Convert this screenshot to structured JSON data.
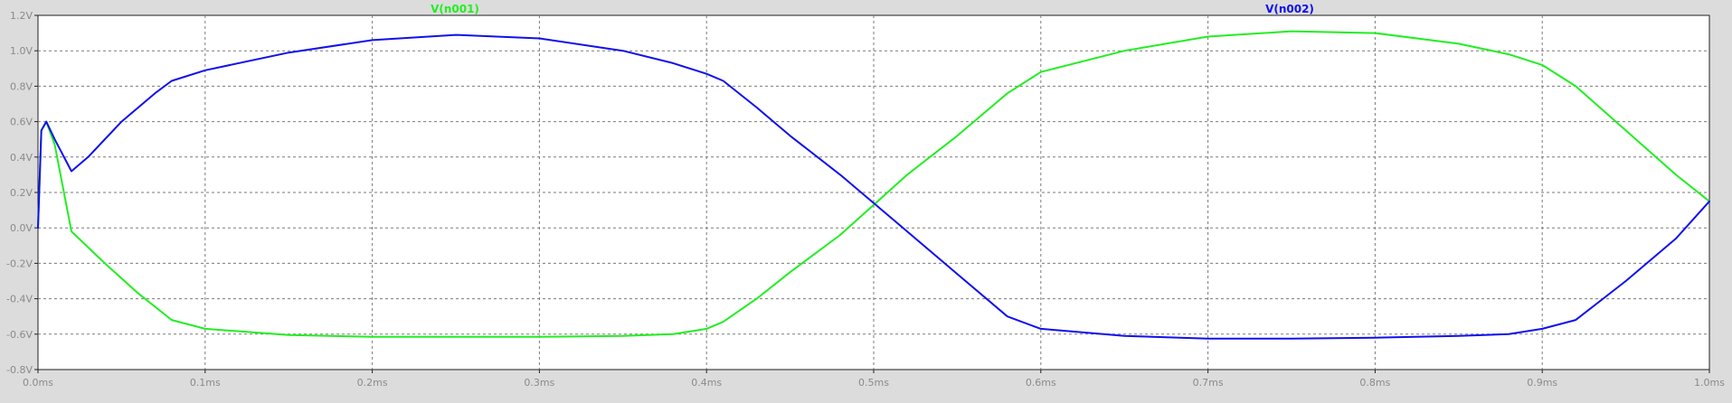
{
  "chart_data": {
    "type": "line",
    "x_unit": "ms",
    "y_unit": "V",
    "xlim": [
      0.0,
      1.0
    ],
    "ylim": [
      -0.8,
      1.2
    ],
    "grid": true,
    "x_tick_labels": [
      "0.0ms",
      "0.1ms",
      "0.2ms",
      "0.3ms",
      "0.4ms",
      "0.5ms",
      "0.6ms",
      "0.7ms",
      "0.8ms",
      "0.9ms",
      "1.0ms"
    ],
    "x_tick_values": [
      0.0,
      0.1,
      0.2,
      0.3,
      0.4,
      0.5,
      0.6,
      0.7,
      0.8,
      0.9,
      1.0
    ],
    "y_tick_labels": [
      "1.2V",
      "1.0V",
      "0.8V",
      "0.6V",
      "0.4V",
      "0.2V",
      "0.0V",
      "-0.2V",
      "-0.4V",
      "-0.6V",
      "-0.8V"
    ],
    "y_tick_values": [
      1.2,
      1.0,
      0.8,
      0.6,
      0.4,
      0.2,
      0.0,
      -0.2,
      -0.4,
      -0.6,
      -0.8
    ],
    "series": [
      {
        "name": "V(n001)",
        "color": "#22ee22",
        "x": [
          0.0,
          0.002,
          0.005,
          0.01,
          0.02,
          0.04,
          0.06,
          0.08,
          0.1,
          0.15,
          0.2,
          0.25,
          0.3,
          0.35,
          0.38,
          0.4,
          0.41,
          0.43,
          0.45,
          0.48,
          0.5,
          0.52,
          0.55,
          0.58,
          0.6,
          0.65,
          0.7,
          0.75,
          0.8,
          0.85,
          0.88,
          0.9,
          0.92,
          0.95,
          0.98,
          1.0
        ],
        "y": [
          0.0,
          0.55,
          0.6,
          0.47,
          -0.02,
          -0.2,
          -0.37,
          -0.52,
          -0.57,
          -0.605,
          -0.615,
          -0.615,
          -0.615,
          -0.61,
          -0.6,
          -0.57,
          -0.53,
          -0.4,
          -0.25,
          -0.04,
          0.13,
          0.3,
          0.52,
          0.76,
          0.88,
          1.0,
          1.08,
          1.11,
          1.1,
          1.04,
          0.98,
          0.92,
          0.8,
          0.55,
          0.3,
          0.15
        ]
      },
      {
        "name": "V(n002)",
        "color": "#1010ee",
        "x": [
          0.0,
          0.002,
          0.005,
          0.01,
          0.02,
          0.03,
          0.05,
          0.07,
          0.08,
          0.1,
          0.15,
          0.2,
          0.25,
          0.3,
          0.35,
          0.38,
          0.4,
          0.41,
          0.43,
          0.45,
          0.48,
          0.5,
          0.52,
          0.55,
          0.58,
          0.6,
          0.65,
          0.7,
          0.75,
          0.8,
          0.85,
          0.88,
          0.9,
          0.92,
          0.95,
          0.98,
          1.0
        ],
        "y": [
          0.0,
          0.55,
          0.6,
          0.5,
          0.32,
          0.4,
          0.6,
          0.76,
          0.83,
          0.89,
          0.99,
          1.06,
          1.09,
          1.07,
          1.0,
          0.93,
          0.87,
          0.83,
          0.68,
          0.52,
          0.3,
          0.14,
          -0.02,
          -0.26,
          -0.5,
          -0.57,
          -0.61,
          -0.625,
          -0.625,
          -0.62,
          -0.61,
          -0.6,
          -0.57,
          -0.52,
          -0.3,
          -0.06,
          0.15
        ]
      }
    ]
  }
}
